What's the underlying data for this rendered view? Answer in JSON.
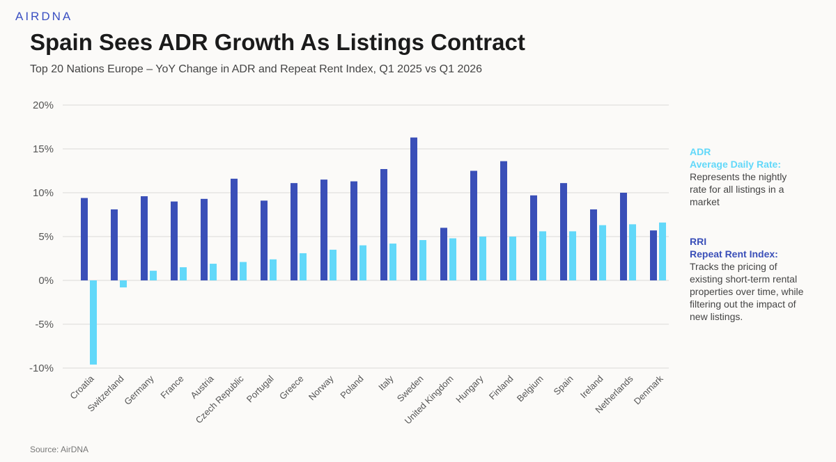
{
  "logo": "AIRDNA",
  "chart_data": {
    "type": "bar",
    "title": "Spain Sees ADR Growth As Listings Contract",
    "subtitle": "Top 20 Nations Europe – YoY Change in ADR and Repeat Rent Index, Q1 2025 vs Q1 2026",
    "xlabel": "",
    "ylabel": "",
    "ylim": [
      -10,
      20
    ],
    "yticks": [
      -10,
      -5,
      0,
      5,
      10,
      15,
      20
    ],
    "ytick_labels": [
      "-10%",
      "-5%",
      "0%",
      "5%",
      "10%",
      "15%",
      "20%"
    ],
    "grid": true,
    "legend_placement": "right",
    "categories": [
      "Croatia",
      "Switzerland",
      "Germany",
      "France",
      "Austria",
      "Czech Republic",
      "Portugal",
      "Greece",
      "Norway",
      "Poland",
      "Italy",
      "Sweden",
      "United Kingdom",
      "Hungary",
      "Finland",
      "Belgium",
      "Spain",
      "Ireland",
      "Netherlands",
      "Denmark"
    ],
    "series": [
      {
        "name": "RRI",
        "color": "#3a4fb8",
        "values": [
          9.4,
          8.1,
          9.6,
          9.0,
          9.3,
          11.6,
          9.1,
          11.1,
          11.5,
          11.3,
          12.7,
          16.3,
          6.0,
          12.5,
          13.6,
          9.7,
          11.1,
          8.1,
          10.0,
          5.7
        ]
      },
      {
        "name": "ADR",
        "color": "#62d8f9",
        "values": [
          -9.6,
          -0.8,
          1.1,
          1.5,
          1.9,
          2.1,
          2.4,
          3.1,
          3.5,
          4.0,
          4.2,
          4.6,
          4.8,
          5.0,
          5.0,
          5.6,
          5.6,
          6.3,
          6.4,
          6.6
        ]
      }
    ]
  },
  "legend": {
    "adr": {
      "code": "ADR",
      "name": "Average Daily Rate:",
      "desc": "Represents the nightly rate for all listings in a market",
      "color": "#62d8f9"
    },
    "rri": {
      "code": "RRI",
      "name": "Repeat Rent Index:",
      "desc": "Tracks the pricing of existing short-term rental properties over time, while filtering out the impact of new listings.",
      "color": "#3a4fb8"
    }
  },
  "source": "Source: AirDNA"
}
